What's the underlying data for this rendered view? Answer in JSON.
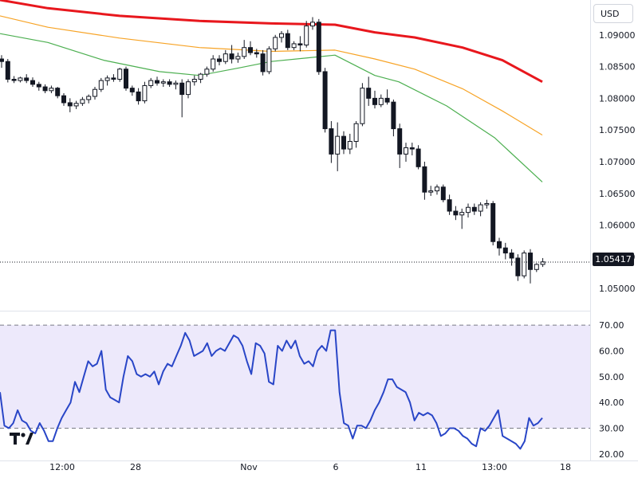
{
  "currency_button": "USD",
  "last_price": "1.05417",
  "x_axis_labels": [
    "12:00",
    "28",
    "Nov",
    "6",
    "11",
    "13:00",
    "18"
  ],
  "colors": {
    "up": "#131722",
    "down": "#131722",
    "ma_slow": "#e8171d",
    "ma_mid": "#f7a325",
    "ma_fast": "#4caf50",
    "rsi_line": "#2946c7",
    "rsi_band": "#ede9fb"
  },
  "chart_data": [
    {
      "type": "candlestick",
      "y_ticks": [
        "1.09000",
        "1.08500",
        "1.08000",
        "1.07500",
        "1.07000",
        "1.06500",
        "1.06000",
        "1.05500",
        "1.05000"
      ],
      "ylim": [
        1.0465,
        1.0955
      ],
      "last_value": 1.05417,
      "candles": [
        [
          1.0862,
          1.0868,
          1.0848,
          1.0858
        ],
        [
          1.0858,
          1.0862,
          1.0825,
          1.083
        ],
        [
          1.083,
          1.0835,
          1.0824,
          1.0828
        ],
        [
          1.0828,
          1.0834,
          1.0825,
          1.0832
        ],
        [
          1.0832,
          1.0838,
          1.0824,
          1.0828
        ],
        [
          1.0828,
          1.0833,
          1.0818,
          1.0822
        ],
        [
          1.0822,
          1.0826,
          1.0812,
          1.0818
        ],
        [
          1.0818,
          1.0822,
          1.0808,
          1.0812
        ],
        [
          1.0812,
          1.082,
          1.0808,
          1.0816
        ],
        [
          1.0816,
          1.0818,
          1.08,
          1.0804
        ],
        [
          1.0804,
          1.0808,
          1.0788,
          1.0793
        ],
        [
          1.0793,
          1.08,
          1.0778,
          1.0788
        ],
        [
          1.0788,
          1.0796,
          1.0783,
          1.0792
        ],
        [
          1.0792,
          1.0802,
          1.0788,
          1.0798
        ],
        [
          1.0798,
          1.0806,
          1.0792,
          1.0803
        ],
        [
          1.0803,
          1.0818,
          1.0798,
          1.0814
        ],
        [
          1.0814,
          1.0832,
          1.081,
          1.0828
        ],
        [
          1.0828,
          1.0836,
          1.082,
          1.0832
        ],
        [
          1.0832,
          1.0838,
          1.0826,
          1.083
        ],
        [
          1.083,
          1.0848,
          1.0826,
          1.0846
        ],
        [
          1.0846,
          1.085,
          1.0812,
          1.0816
        ],
        [
          1.0816,
          1.082,
          1.0804,
          1.081
        ],
        [
          1.081,
          1.0816,
          1.079,
          1.0796
        ],
        [
          1.0796,
          1.0826,
          1.0792,
          1.082
        ],
        [
          1.082,
          1.0832,
          1.0816,
          1.0828
        ],
        [
          1.0828,
          1.0834,
          1.082,
          1.0824
        ],
        [
          1.0824,
          1.083,
          1.0818,
          1.0826
        ],
        [
          1.0826,
          1.083,
          1.0818,
          1.0822
        ],
        [
          1.0822,
          1.0828,
          1.0814,
          1.0824
        ],
        [
          1.0824,
          1.083,
          1.077,
          1.0806
        ],
        [
          1.0806,
          1.083,
          1.08,
          1.0826
        ],
        [
          1.0826,
          1.0836,
          1.082,
          1.083
        ],
        [
          1.083,
          1.084,
          1.0824,
          1.0838
        ],
        [
          1.0838,
          1.085,
          1.0834,
          1.0846
        ],
        [
          1.0846,
          1.0868,
          1.0842,
          1.0862
        ],
        [
          1.0862,
          1.0868,
          1.0852,
          1.0858
        ],
        [
          1.0858,
          1.0876,
          1.0854,
          1.087
        ],
        [
          1.087,
          1.0884,
          1.0855,
          1.0862
        ],
        [
          1.0862,
          1.0872,
          1.0856,
          1.0866
        ],
        [
          1.0866,
          1.0892,
          1.0862,
          1.088
        ],
        [
          1.088,
          1.089,
          1.0868,
          1.0872
        ],
        [
          1.0872,
          1.0878,
          1.0864,
          1.087
        ],
        [
          1.087,
          1.0876,
          1.0836,
          1.0842
        ],
        [
          1.0842,
          1.0882,
          1.0838,
          1.0878
        ],
        [
          1.0878,
          1.09,
          1.0874,
          1.0896
        ],
        [
          1.0896,
          1.0906,
          1.0888,
          1.0902
        ],
        [
          1.0902,
          1.0908,
          1.0876,
          1.088
        ],
        [
          1.088,
          1.089,
          1.0876,
          1.0886
        ],
        [
          1.0886,
          1.0898,
          1.0874,
          1.0884
        ],
        [
          1.0884,
          1.0922,
          1.088,
          1.0914
        ],
        [
          1.0914,
          1.0928,
          1.0908,
          1.092
        ],
        [
          1.092,
          1.0925,
          1.0837,
          1.0842
        ],
        [
          1.0842,
          1.0848,
          1.0746,
          1.0752
        ],
        [
          1.0752,
          1.0764,
          1.0698,
          1.0712
        ],
        [
          1.0712,
          1.0762,
          1.0685,
          1.074
        ],
        [
          1.074,
          1.0748,
          1.0712,
          1.072
        ],
        [
          1.072,
          1.0744,
          1.0712,
          1.0732
        ],
        [
          1.0732,
          1.0764,
          1.0722,
          1.076
        ],
        [
          1.076,
          1.0824,
          1.0756,
          1.0816
        ],
        [
          1.0816,
          1.0834,
          1.0788,
          1.08
        ],
        [
          1.08,
          1.0812,
          1.0784,
          1.079
        ],
        [
          1.079,
          1.0806,
          1.0786,
          1.08
        ],
        [
          1.08,
          1.0814,
          1.079,
          1.0794
        ],
        [
          1.0794,
          1.0798,
          1.074,
          1.0752
        ],
        [
          1.0752,
          1.076,
          1.069,
          1.0712
        ],
        [
          1.0712,
          1.073,
          1.07,
          1.0722
        ],
        [
          1.0722,
          1.073,
          1.071,
          1.072
        ],
        [
          1.072,
          1.0726,
          1.0688,
          1.0692
        ],
        [
          1.0692,
          1.07,
          1.064,
          1.0652
        ],
        [
          1.0652,
          1.0662,
          1.0646,
          1.0654
        ],
        [
          1.0654,
          1.0664,
          1.0648,
          1.066
        ],
        [
          1.066,
          1.0664,
          1.0636,
          1.064
        ],
        [
          1.064,
          1.0648,
          1.0616,
          1.0622
        ],
        [
          1.0622,
          1.063,
          1.0608,
          1.0616
        ],
        [
          1.0616,
          1.0626,
          1.0594,
          1.062
        ],
        [
          1.062,
          1.0634,
          1.0612,
          1.0628
        ],
        [
          1.0628,
          1.0634,
          1.0616,
          1.0622
        ],
        [
          1.0622,
          1.0636,
          1.0614,
          1.0632
        ],
        [
          1.0632,
          1.064,
          1.0626,
          1.0634
        ],
        [
          1.0634,
          1.0638,
          1.0568,
          1.0574
        ],
        [
          1.0574,
          1.058,
          1.0552,
          1.0564
        ],
        [
          1.0564,
          1.0572,
          1.0546,
          1.0556
        ],
        [
          1.0556,
          1.0562,
          1.0536,
          1.0548
        ],
        [
          1.0548,
          1.0554,
          1.0512,
          1.052
        ],
        [
          1.052,
          1.056,
          1.0516,
          1.0556
        ],
        [
          1.0556,
          1.0562,
          1.0508,
          1.053
        ],
        [
          1.053,
          1.054,
          1.0526,
          1.0538
        ],
        [
          1.0538,
          1.0548,
          1.0534,
          1.0542
        ]
      ],
      "moving_averages": [
        {
          "values": [
            [
              0,
              1.0955
            ],
            [
              60,
              1.0942
            ],
            [
              150,
              1.093
            ],
            [
              250,
              1.0922
            ],
            [
              340,
              1.0918
            ],
            [
              420,
              1.0916
            ],
            [
              470,
              1.0904
            ],
            [
              520,
              1.0896
            ],
            [
              580,
              1.088
            ],
            [
              630,
              1.086
            ],
            [
              680,
              1.0826
            ]
          ]
        },
        {
          "values": [
            [
              0,
              1.093
            ],
            [
              60,
              1.0912
            ],
            [
              150,
              1.0895
            ],
            [
              250,
              1.088
            ],
            [
              340,
              1.0874
            ],
            [
              420,
              1.0876
            ],
            [
              470,
              1.0862
            ],
            [
              520,
              1.0846
            ],
            [
              580,
              1.0815
            ],
            [
              630,
              1.078
            ],
            [
              680,
              1.0742
            ]
          ]
        },
        {
          "values": [
            [
              0,
              1.0902
            ],
            [
              60,
              1.0888
            ],
            [
              130,
              1.086
            ],
            [
              200,
              1.0842
            ],
            [
              250,
              1.0836
            ],
            [
              300,
              1.0848
            ],
            [
              340,
              1.0858
            ],
            [
              420,
              1.0868
            ],
            [
              470,
              1.0836
            ],
            [
              500,
              1.0826
            ],
            [
              560,
              1.0788
            ],
            [
              620,
              1.0738
            ],
            [
              680,
              1.0668
            ]
          ]
        }
      ]
    },
    {
      "type": "line",
      "y_ticks": [
        "70.00",
        "60.00",
        "50.00",
        "40.00",
        "30.00",
        "20.00"
      ],
      "ylim": [
        17.5,
        72.5
      ],
      "band": [
        30,
        70
      ],
      "series": [
        {
          "values": [
            44,
            31,
            30,
            32,
            37,
            33,
            32,
            29,
            28,
            32,
            29,
            25,
            25,
            30,
            34,
            37,
            40,
            48,
            44,
            50,
            56,
            54,
            55,
            60,
            45,
            42,
            41,
            40,
            50,
            58,
            56,
            51,
            50,
            51,
            50,
            52,
            47,
            52,
            55,
            54,
            58,
            62,
            67,
            64,
            58,
            59,
            60,
            63,
            58,
            60,
            61,
            60,
            63,
            66,
            65,
            62,
            56,
            51,
            63,
            62,
            59,
            48,
            47,
            62,
            60,
            64,
            61,
            64,
            58,
            55,
            56,
            54,
            60,
            62,
            60,
            68,
            68,
            44,
            32,
            31,
            26,
            31,
            31,
            30,
            33,
            37,
            40,
            44,
            49,
            49,
            46,
            45,
            44,
            40,
            33,
            36,
            35,
            36,
            35,
            32,
            27,
            28,
            30,
            30,
            29,
            27,
            26,
            24,
            23,
            30,
            29,
            31,
            34,
            37,
            27,
            26,
            25,
            24,
            22,
            25,
            34,
            31,
            32,
            34
          ]
        }
      ]
    }
  ]
}
